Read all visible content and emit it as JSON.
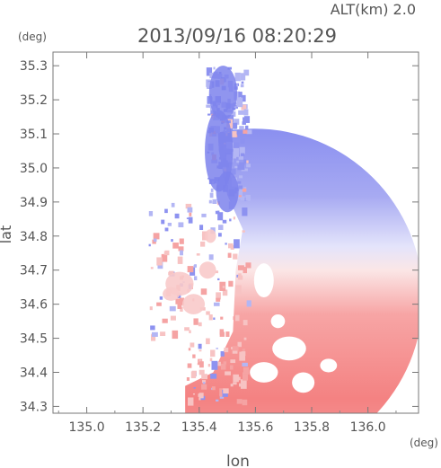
{
  "header": {
    "altitude_label": "ALT(km) 2.0",
    "timestamp": "2013/09/16 08:20:29"
  },
  "chart_data": {
    "type": "heatmap",
    "title": "2013/09/16 08:20:29",
    "subtitle": "ALT(km) 2.0",
    "xlabel": "lon",
    "ylabel": "lat",
    "x_unit": "(deg)",
    "y_unit": "(deg)",
    "xlim": [
      134.88,
      136.18
    ],
    "ylim": [
      34.28,
      35.34
    ],
    "x_ticks": [
      "135.0",
      "135.2",
      "135.4",
      "135.6",
      "135.8",
      "136.0"
    ],
    "y_ticks": [
      "34.3",
      "34.4",
      "34.5",
      "34.6",
      "34.7",
      "34.8",
      "34.9",
      "35.0",
      "35.1",
      "35.2",
      "35.3"
    ],
    "grid": false,
    "colormap": {
      "negative": "#6f74e8",
      "zero": "#ffffff",
      "positive": "#f26f6f"
    },
    "radar": {
      "center": [
        135.595,
        34.62
      ],
      "range_deg": 0.6
    },
    "regions": [
      {
        "name": "north",
        "sign": "negative",
        "lat_range": [
          34.82,
          35.34
        ]
      },
      {
        "name": "south",
        "sign": "positive",
        "lat_range": [
          34.28,
          34.82
        ]
      }
    ]
  }
}
